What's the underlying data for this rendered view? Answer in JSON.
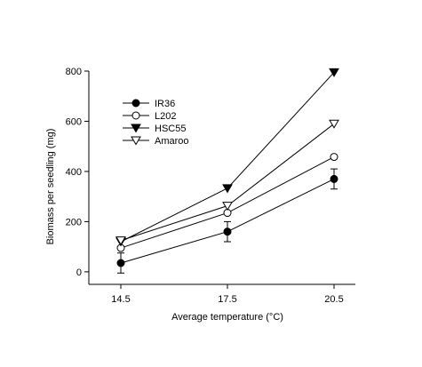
{
  "chart_data": {
    "type": "line",
    "xlabel": "Average temperature (°C)",
    "ylabel": "Biomass per seedling (mg)",
    "x": [
      14.5,
      17.5,
      20.5
    ],
    "x_tick_labels": [
      "14.5",
      "17.5",
      "20.5"
    ],
    "xlim": [
      13.6,
      21.1
    ],
    "ylim": [
      -50,
      800
    ],
    "y_ticks": [
      0,
      200,
      400,
      600,
      800
    ],
    "y_tick_labels": [
      "0",
      "200",
      "400",
      "600",
      "800"
    ],
    "grid": false,
    "legend_position": "top-left",
    "series": [
      {
        "name": "IR36",
        "marker": "filled-circle",
        "values": [
          35,
          160,
          370
        ],
        "error": [
          40,
          40,
          40
        ]
      },
      {
        "name": "L202",
        "marker": "open-circle",
        "values": [
          95,
          235,
          458
        ]
      },
      {
        "name": "HSC55",
        "marker": "filled-triangle-down",
        "values": [
          120,
          333,
          795
        ]
      },
      {
        "name": "Amaroo",
        "marker": "open-triangle-down",
        "values": [
          125,
          263,
          590
        ]
      }
    ]
  }
}
